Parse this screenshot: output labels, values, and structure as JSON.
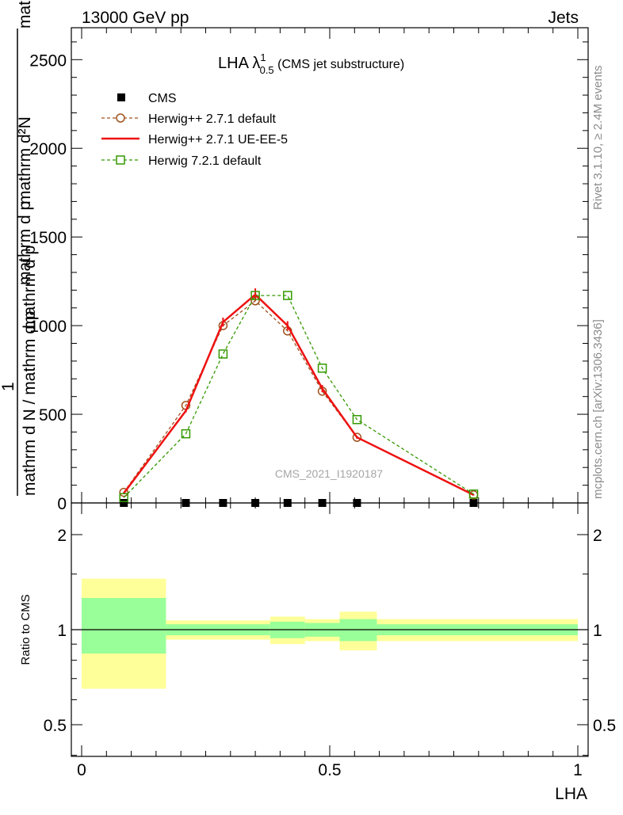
{
  "header": {
    "energy_label": "13000 GeV pp",
    "category_label": "Jets"
  },
  "side_labels": {
    "rivet": "Rivet 3.1.10, ≥ 2.4M events",
    "mcplots": "mcplots.cern.ch [arXiv:1306.3436]"
  },
  "watermark": "CMS_2021_I1920187",
  "title": {
    "main": "LHA λ",
    "sup": "1",
    "sub": "0.5",
    "rest": " (CMS jet substructure)"
  },
  "axis_labels": {
    "ylabel_top": "1",
    "ylabel_num": "mathrm d²N",
    "ylabel_num_tail": "mathrm d p",
    "ylabel_num_tail2": " mathrm d lambda",
    "ylabel_den": "mathrm d N / mathrm d p",
    "ylabel_den_tail": " mathrm d p",
    "ratio_ylabel": "Ratio to CMS",
    "xlabel": "LHA"
  },
  "colors": {
    "data": "#000000",
    "herwig_default": "#a0521e",
    "herwig_ueee5": "#ee1111",
    "herwig721": "#339900",
    "band_inner": "#99ff99",
    "band_outer": "#ffff99"
  },
  "chart_data": [
    {
      "type": "line",
      "title": "LHA λ^1_0.5 (CMS jet substructure)",
      "ylim": [
        0,
        2680
      ],
      "xlim": [
        -0.02,
        1.02
      ],
      "y_ticks": [
        0,
        500,
        1000,
        1500,
        2000,
        2500
      ],
      "y_tick_labels": [
        "0",
        "500",
        "1000",
        "1500",
        "2000",
        "2500"
      ],
      "series": [
        {
          "name": "CMS",
          "style": "markers",
          "x": [
            0.085,
            0.21,
            0.285,
            0.35,
            0.415,
            0.485,
            0.555,
            0.79
          ],
          "y": [
            0,
            0,
            0,
            0,
            0,
            0,
            0,
            0
          ]
        },
        {
          "name": "Herwig++ 2.7.1 default",
          "style": "dashed-circle",
          "x": [
            0.085,
            0.21,
            0.285,
            0.35,
            0.415,
            0.485,
            0.555,
            0.79
          ],
          "y": [
            60,
            550,
            1000,
            1140,
            970,
            630,
            370,
            45
          ]
        },
        {
          "name": "Herwig++ 2.7.1 UE-EE-5",
          "style": "solid",
          "x": [
            0.085,
            0.21,
            0.285,
            0.35,
            0.415,
            0.485,
            0.555,
            0.79
          ],
          "y": [
            55,
            520,
            1020,
            1175,
            1000,
            645,
            370,
            45
          ],
          "yerr": [
            5,
            10,
            25,
            35,
            25,
            20,
            8,
            3
          ]
        },
        {
          "name": "Herwig 7.2.1 default",
          "style": "dashed-square",
          "x": [
            0.085,
            0.21,
            0.285,
            0.35,
            0.415,
            0.485,
            0.555,
            0.79
          ],
          "y": [
            30,
            390,
            840,
            1170,
            1170,
            760,
            470,
            50
          ]
        }
      ]
    },
    {
      "type": "area",
      "ylabel": "Ratio to CMS",
      "xlabel": "LHA",
      "ylim": [
        0.35,
        2.35
      ],
      "x_ticks": [
        0,
        0.5,
        1
      ],
      "x_tick_labels": [
        "0",
        "0.5",
        "1"
      ],
      "y_ticks": [
        0.5,
        1,
        2
      ],
      "y_tick_labels": [
        "0.5",
        "1",
        "2"
      ],
      "bins": [
        {
          "x0": 0.0,
          "x1": 0.17,
          "inner": [
            0.84,
            1.26
          ],
          "outer": [
            0.65,
            1.45
          ]
        },
        {
          "x0": 0.17,
          "x1": 0.38,
          "inner": [
            0.96,
            1.04
          ],
          "outer": [
            0.93,
            1.07
          ]
        },
        {
          "x0": 0.38,
          "x1": 0.45,
          "inner": [
            0.94,
            1.06
          ],
          "outer": [
            0.9,
            1.1
          ]
        },
        {
          "x0": 0.45,
          "x1": 0.52,
          "inner": [
            0.95,
            1.05
          ],
          "outer": [
            0.92,
            1.08
          ]
        },
        {
          "x0": 0.52,
          "x1": 0.595,
          "inner": [
            0.92,
            1.08
          ],
          "outer": [
            0.86,
            1.14
          ]
        },
        {
          "x0": 0.595,
          "x1": 1.0,
          "inner": [
            0.96,
            1.04
          ],
          "outer": [
            0.92,
            1.08
          ]
        }
      ],
      "reference": 1
    }
  ]
}
